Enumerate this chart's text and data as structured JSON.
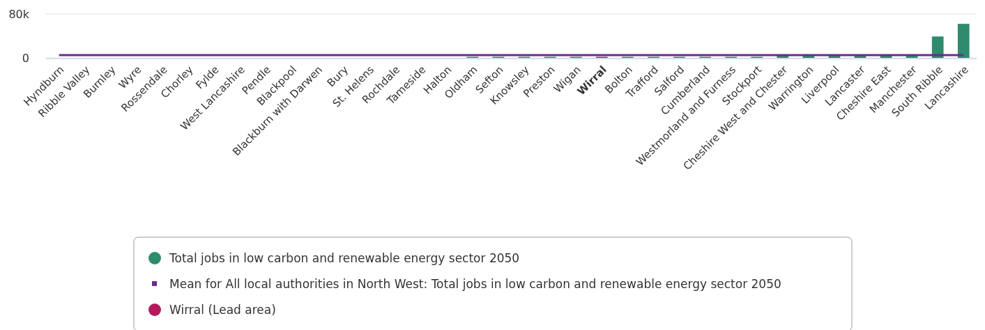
{
  "chart_data": {
    "type": "bar",
    "categories": [
      "Hyndburn",
      "Ribble Valley",
      "Burnley",
      "Wyre",
      "Rossendale",
      "Chorley",
      "Fylde",
      "West Lancashire",
      "Pendle",
      "Blackpool",
      "Blackburn with Darwen",
      "Bury",
      "St. Helens",
      "Rochdale",
      "Tameside",
      "Halton",
      "Oldham",
      "Sefton",
      "Knowsley",
      "Preston",
      "Wigan",
      "Wirral",
      "Bolton",
      "Trafford",
      "Salford",
      "Cumberland",
      "Westmorland and Furness",
      "Stockport",
      "Cheshire West and Chester",
      "Warrington",
      "Liverpool",
      "Lancaster",
      "Cheshire East",
      "Manchester",
      "South Ribble",
      "Lancashire"
    ],
    "series": [
      {
        "name": "Total jobs in low carbon and renewable energy sector 2050",
        "color": "#2e8b6e",
        "values": [
          0,
          0,
          0,
          0,
          0,
          0,
          0,
          0,
          0,
          0,
          0,
          0,
          0,
          0,
          0,
          0,
          1000,
          1000,
          1000,
          1000,
          1000,
          null,
          1000,
          1000,
          1000,
          1000,
          1000,
          1000,
          4000,
          4000,
          4000,
          4000,
          4000,
          4000,
          39000,
          62000
        ]
      },
      {
        "type": "line",
        "name": "Mean for All local authorities in North West: Total jobs in low carbon and renewable energy sector 2050",
        "color": "#6a2c8e",
        "values": [
          5000,
          5000,
          5000,
          5000,
          5000,
          5000,
          5000,
          5000,
          5000,
          5000,
          5000,
          5000,
          5000,
          5000,
          5000,
          5000,
          5000,
          5000,
          5000,
          5000,
          5000,
          5000,
          5000,
          5000,
          5000,
          5000,
          5000,
          5000,
          5000,
          5000,
          5000,
          5000,
          5000,
          5000,
          5000,
          5000
        ]
      },
      {
        "name": "Wirral (Lead area)",
        "color": "#b5195b",
        "values": [
          null,
          null,
          null,
          null,
          null,
          null,
          null,
          null,
          null,
          null,
          null,
          null,
          null,
          null,
          null,
          null,
          null,
          null,
          null,
          null,
          null,
          1000,
          null,
          null,
          null,
          null,
          null,
          null,
          null,
          null,
          null,
          null,
          null,
          null,
          null,
          null
        ]
      }
    ],
    "ylim": [
      0,
      80000
    ],
    "yticks": [
      0,
      {
        "value": 80000,
        "label": "80k"
      }
    ],
    "grid": "y",
    "legend": "bottom"
  }
}
